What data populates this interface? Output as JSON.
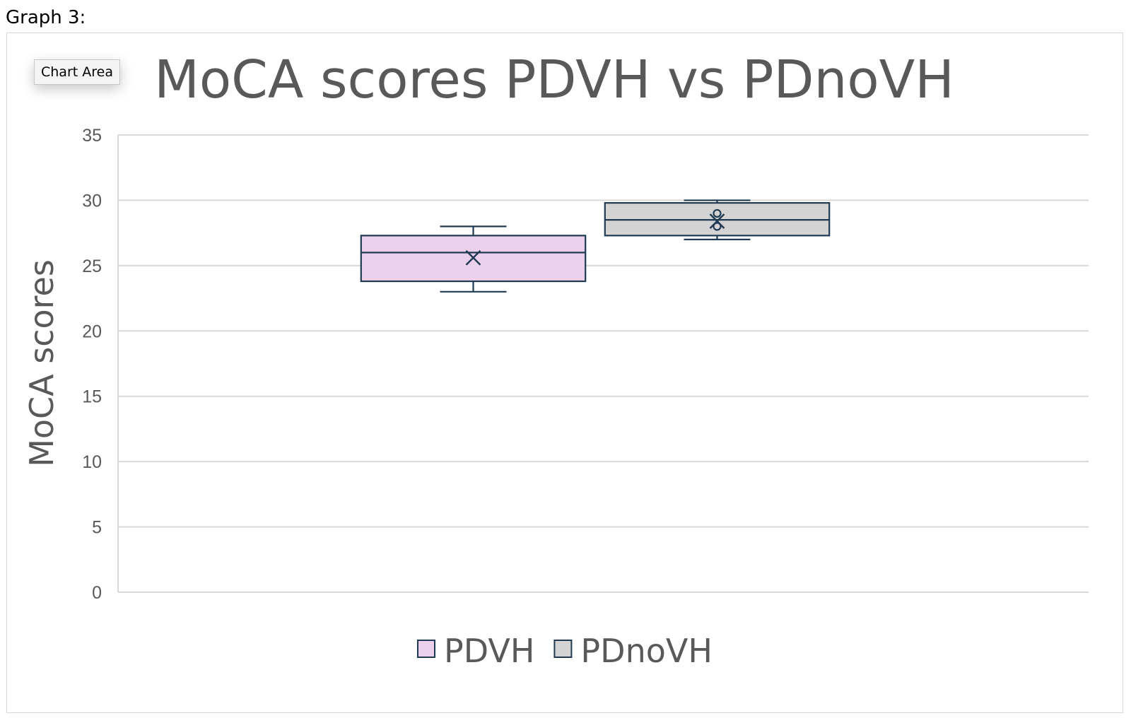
{
  "document": {
    "heading": "Graph 3:"
  },
  "tooltip": {
    "label": "Chart Area"
  },
  "chart_data": {
    "type": "box",
    "title": "MoCA scores PDVH vs PDnoVH",
    "xlabel": "",
    "ylabel": "MoCA scores",
    "ylim": [
      0,
      35
    ],
    "yticks": [
      0,
      5,
      10,
      15,
      20,
      25,
      30,
      35
    ],
    "grid": true,
    "legend_position": "bottom",
    "series": [
      {
        "name": "PDVH",
        "color": "#ecd0ec",
        "min": 23,
        "q1": 23.8,
        "median": 26,
        "q3": 27.3,
        "max": 28,
        "mean": 25.6,
        "outliers": []
      },
      {
        "name": "PDnoVH",
        "color": "#d3d3d3",
        "min": 27,
        "q1": 27.3,
        "median": 28.5,
        "q3": 29.8,
        "max": 30,
        "mean": 28.4,
        "outliers": [
          28,
          29
        ]
      }
    ],
    "stroke_color": "#1f3a52"
  }
}
